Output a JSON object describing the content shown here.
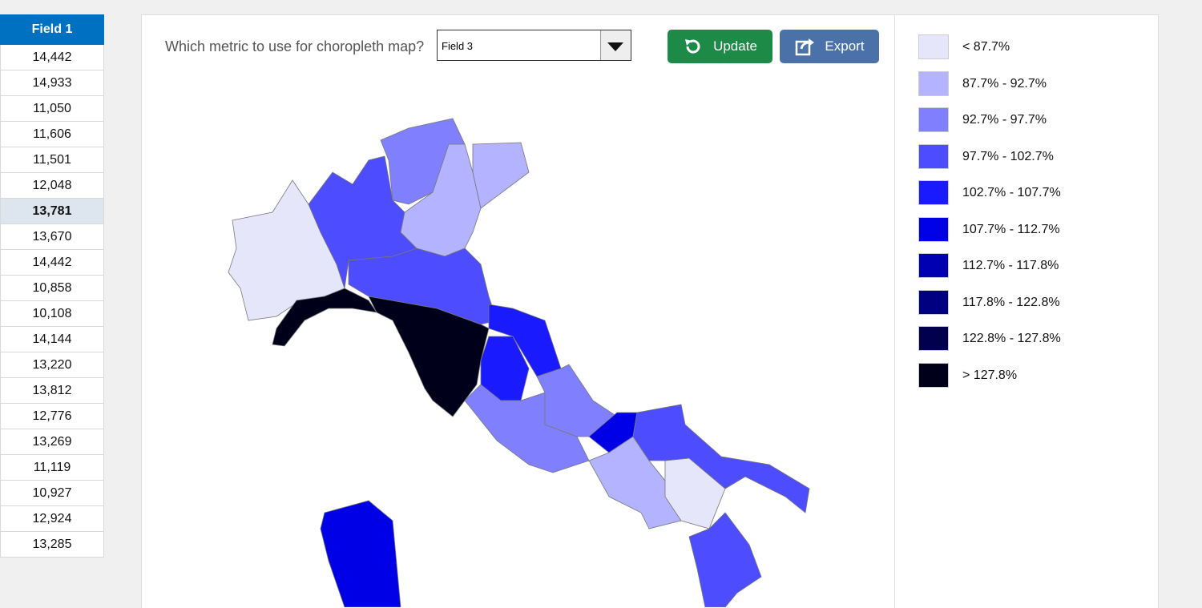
{
  "table": {
    "header": "Field 1",
    "rows": [
      "14,442",
      "14,933",
      "11,050",
      "11,606",
      "11,501",
      "12,048",
      "13,781",
      "13,670",
      "14,442",
      "10,858",
      "10,108",
      "14,144",
      "13,220",
      "13,812",
      "12,776",
      "13,269",
      "11,119",
      "10,927",
      "12,924",
      "13,285"
    ]
  },
  "prompt": "Which metric to use for choropleth map?",
  "dropdown": "Field 3",
  "buttons": [
    "Update",
    "Export"
  ],
  "legend": [
    {
      "label": "< 87.7%",
      "color": "#e6e6fa"
    },
    {
      "label": "87.7% - 92.7%",
      "color": "#b3b3ff"
    },
    {
      "label": "92.7% - 97.7%",
      "color": "#8080ff"
    },
    {
      "label": "97.7% - 102.7%",
      "color": "#4d4dff"
    },
    {
      "label": "102.7% - 107.7%",
      "color": "#1a1aff"
    },
    {
      "label": "107.7% - 112.7%",
      "color": "#0000e6"
    },
    {
      "label": "112.7% - 117.8%",
      "color": "#0000b3"
    },
    {
      "label": "117.8% - 122.8%",
      "color": "#000080"
    },
    {
      "label": "122.8% - 127.8%",
      "color": "#00004d"
    },
    {
      "label": "> 127.8%",
      "color": "#00001a"
    }
  ]
}
